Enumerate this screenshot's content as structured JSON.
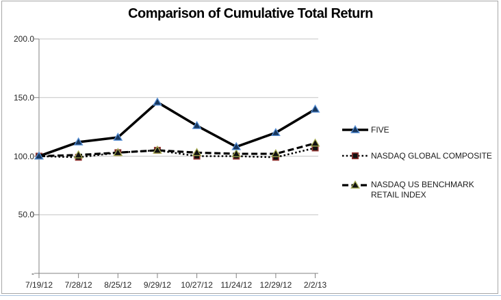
{
  "window": {
    "background": "#ffffff",
    "frame_border_color": "#a6a6a6",
    "sheet_gridline_color": "#a9c2de"
  },
  "chart_data": {
    "type": "line",
    "title": "Comparison of Cumulative Total Return",
    "xlabel": "",
    "ylabel": "",
    "x_labels": [
      "7/19/12",
      "7/28/12",
      "8/25/12",
      "9/29/12",
      "10/27/12",
      "11/24/12",
      "12/29/12",
      "2/2/13"
    ],
    "y_tick_labels": [
      "200.0",
      "150.0",
      "100.0",
      "50.0",
      "-"
    ],
    "y_tick_values": [
      200,
      150,
      100,
      50,
      0
    ],
    "ylim": [
      0,
      200
    ],
    "grid": true,
    "legend_position": "right-middle",
    "axis_color": "#808080",
    "gridline_color": "#c3c3c3",
    "tick_text_color": "#262626",
    "series": [
      {
        "name": "FIVE",
        "values": [
          100,
          112,
          116,
          146,
          126,
          108,
          120,
          140
        ],
        "line_style": "solid",
        "line_color": "#000000",
        "marker": "triangle",
        "marker_fill": "#17375e",
        "marker_stroke": "#558ed5"
      },
      {
        "name": "NASDAQ GLOBAL COMPOSITE",
        "values": [
          100,
          99,
          103,
          105,
          100,
          100,
          99,
          107
        ],
        "line_style": "dotted",
        "line_color": "#000000",
        "marker": "square",
        "marker_fill": "#111111",
        "marker_stroke": "#943634"
      },
      {
        "name": "NASDAQ US BENCHMARK RETAIL INDEX",
        "values": [
          100,
          101,
          103,
          105,
          103,
          102,
          102,
          111
        ],
        "line_style": "dashed",
        "line_color": "#000000",
        "marker": "triangle",
        "marker_fill": "#111111",
        "marker_stroke": "#a5ab52"
      }
    ]
  }
}
